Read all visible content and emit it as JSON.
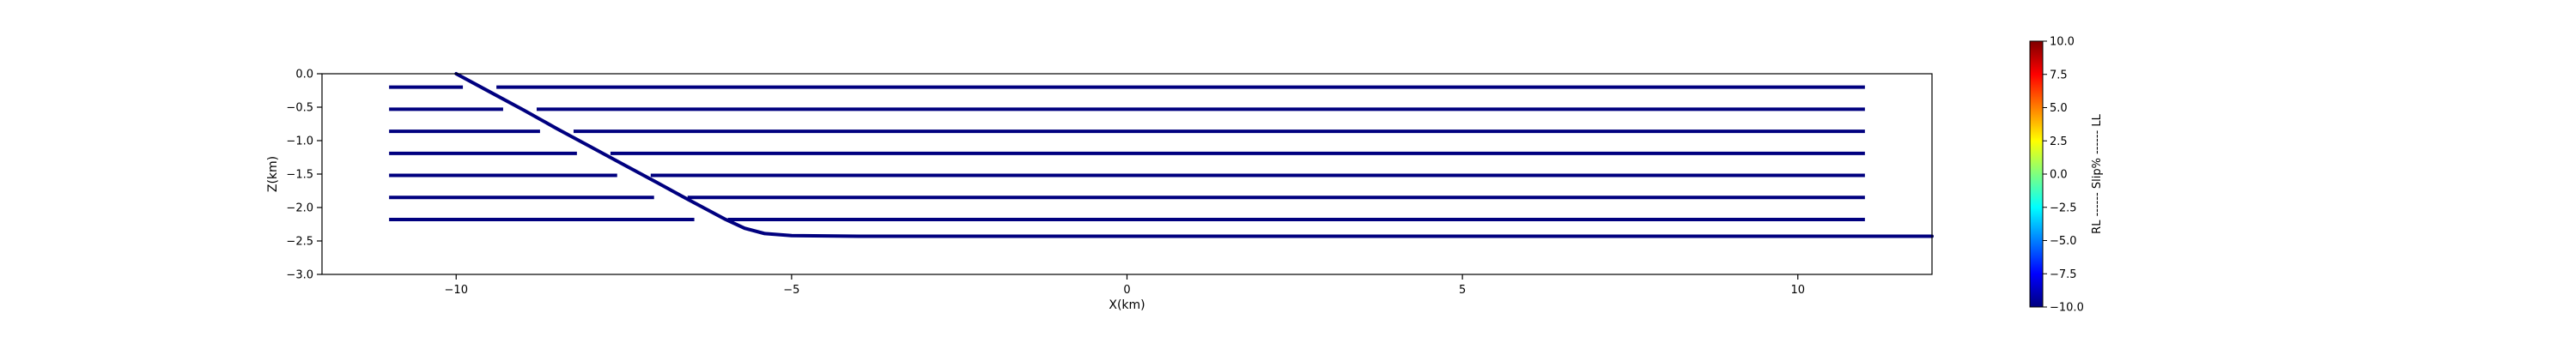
{
  "chart_data": {
    "type": "line",
    "title": "",
    "xlabel": "X(km)",
    "ylabel": "Z(km)",
    "xlim": [
      -12,
      12
    ],
    "ylim": [
      -3.0,
      0.0
    ],
    "xticks": [
      {
        "value": -10,
        "label": "−10"
      },
      {
        "value": -5,
        "label": "−5"
      },
      {
        "value": 0,
        "label": "0"
      },
      {
        "value": 5,
        "label": "5"
      },
      {
        "value": 10,
        "label": "10"
      }
    ],
    "yticks": [
      {
        "value": 0.0,
        "label": "0.0"
      },
      {
        "value": -0.5,
        "label": "−0.5"
      },
      {
        "value": -1.0,
        "label": "−1.0"
      },
      {
        "value": -1.5,
        "label": "−1.5"
      },
      {
        "value": -2.0,
        "label": "−2.0"
      },
      {
        "value": -2.5,
        "label": "−2.5"
      },
      {
        "value": -3.0,
        "label": "−3.0"
      }
    ],
    "grid": false,
    "line_color": "#00007f",
    "main_fault": {
      "x": [
        -10.0,
        -9.5,
        -9.0,
        -8.5,
        -8.0,
        -7.5,
        -7.0,
        -6.6,
        -6.3,
        -6.0,
        -5.7,
        -5.4,
        -5.0,
        -4.0,
        -3.0,
        0.0,
        5.0,
        10.0,
        12.0
      ],
      "z": [
        0.0,
        -0.27,
        -0.54,
        -0.82,
        -1.09,
        -1.36,
        -1.63,
        -1.85,
        -2.01,
        -2.17,
        -2.31,
        -2.39,
        -2.42,
        -2.43,
        -2.43,
        -2.43,
        -2.43,
        -2.43,
        -2.43
      ]
    },
    "horizontal_faults": [
      {
        "z": -0.2,
        "segments": [
          [
            -11.0,
            -9.9
          ],
          [
            -9.4,
            11.0
          ]
        ]
      },
      {
        "z": -0.53,
        "segments": [
          [
            -11.0,
            -9.3
          ],
          [
            -8.8,
            11.0
          ]
        ]
      },
      {
        "z": -0.86,
        "segments": [
          [
            -11.0,
            -8.75
          ],
          [
            -8.25,
            11.0
          ]
        ]
      },
      {
        "z": -1.19,
        "segments": [
          [
            -11.0,
            -8.2
          ],
          [
            -7.7,
            11.0
          ]
        ]
      },
      {
        "z": -1.52,
        "segments": [
          [
            -11.0,
            -7.6
          ],
          [
            -7.1,
            11.0
          ]
        ]
      },
      {
        "z": -1.85,
        "segments": [
          [
            -11.0,
            -7.05
          ],
          [
            -6.55,
            11.0
          ]
        ]
      },
      {
        "z": -2.18,
        "segments": [
          [
            -11.0,
            -6.45
          ],
          [
            -5.95,
            11.0
          ]
        ]
      }
    ],
    "colorbar": {
      "label": "RL ------ Slip% ------ LL",
      "range": [
        -10.0,
        10.0
      ],
      "colormap": "jet",
      "colors": [
        "#00007f",
        "#0000ff",
        "#007fff",
        "#00ffff",
        "#7fff7f",
        "#ffff00",
        "#ff7f00",
        "#ff0000",
        "#7f0000"
      ],
      "ticks": [
        {
          "value": 10.0,
          "label": "10.0"
        },
        {
          "value": 7.5,
          "label": "7.5"
        },
        {
          "value": 5.0,
          "label": "5.0"
        },
        {
          "value": 2.5,
          "label": "2.5"
        },
        {
          "value": 0.0,
          "label": "0.0"
        },
        {
          "value": -2.5,
          "label": "−2.5"
        },
        {
          "value": -5.0,
          "label": "−5.0"
        },
        {
          "value": -7.5,
          "label": "−7.5"
        },
        {
          "value": -10.0,
          "label": "−10.0"
        }
      ]
    }
  }
}
